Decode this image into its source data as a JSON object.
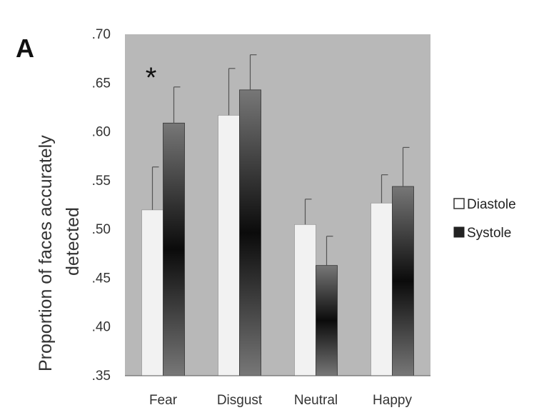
{
  "chart_data": {
    "type": "bar",
    "panel_label": "A",
    "ylabel": [
      "Proportion of faces accurately",
      "detected"
    ],
    "xlabel": "",
    "categories": [
      "Fear",
      "Disgust",
      "Neutral",
      "Happy"
    ],
    "ylim": [
      0.35,
      0.7
    ],
    "yticks": [
      0.35,
      0.4,
      0.45,
      0.5,
      0.55,
      0.6,
      0.65,
      0.7
    ],
    "ytick_labels": [
      ".35",
      ".40",
      ".45",
      ".50",
      ".55",
      ".60",
      ".65",
      ".70"
    ],
    "series": [
      {
        "name": "Diastole",
        "values": [
          0.52,
          0.617,
          0.505,
          0.527
        ],
        "errors": [
          0.044,
          0.048,
          0.026,
          0.029
        ],
        "color": "#f2f2f2"
      },
      {
        "name": "Systole",
        "values": [
          0.609,
          0.643,
          0.463,
          0.544
        ],
        "errors": [
          0.037,
          0.036,
          0.03,
          0.04
        ],
        "color": "#1a1a1a"
      }
    ],
    "annotations": [
      {
        "text": "*",
        "category": "Fear"
      }
    ],
    "legend": "right",
    "background": "#b8b8b8",
    "grid": false
  }
}
